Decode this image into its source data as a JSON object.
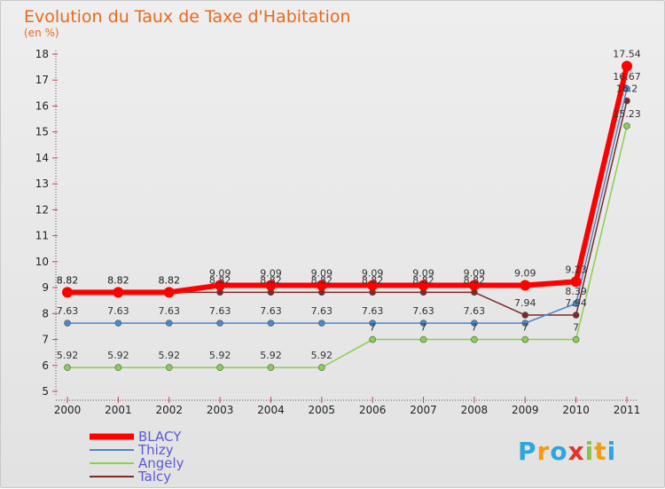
{
  "chart_data": {
    "type": "line",
    "title": "Evolution du Taux de Taxe d'Habitation",
    "subtitle": "(en %)",
    "xlabel": "",
    "ylabel": "",
    "categories": [
      "2000",
      "2001",
      "2002",
      "2003",
      "2004",
      "2005",
      "2006",
      "2007",
      "2008",
      "2009",
      "2010",
      "2011"
    ],
    "ylim": [
      5,
      18
    ],
    "yticks": [
      5,
      6,
      7,
      8,
      9,
      10,
      11,
      12,
      13,
      14,
      15,
      16,
      17,
      18
    ],
    "grid": false,
    "legend_position": "bottom-left",
    "series": [
      {
        "name": "BLACY",
        "color": "#ff0000",
        "values": [
          8.82,
          8.82,
          8.82,
          9.09,
          9.09,
          9.09,
          9.09,
          9.09,
          9.09,
          9.09,
          9.23,
          17.54
        ],
        "labels": [
          "8.82",
          "8.82",
          "8.82",
          "9.09",
          "9.09",
          "9.09",
          "9.09",
          "9.09",
          "9.09",
          "9.09",
          "9.23",
          "17.54"
        ]
      },
      {
        "name": "Thizy",
        "color": "#4a86c8",
        "values": [
          7.63,
          7.63,
          7.63,
          7.63,
          7.63,
          7.63,
          7.63,
          7.63,
          7.63,
          7.63,
          8.39,
          16.67
        ],
        "labels": [
          "7.63",
          "7.63",
          "7.63",
          "7.63",
          "7.63",
          "7.63",
          "7.63",
          "7.63",
          "7.63",
          "",
          "8.39",
          "16.67"
        ]
      },
      {
        "name": "Angely",
        "color": "#88d050",
        "values": [
          5.92,
          5.92,
          5.92,
          5.92,
          5.92,
          5.92,
          7,
          7,
          7,
          7,
          7,
          15.23
        ],
        "labels": [
          "5.92",
          "5.92",
          "5.92",
          "5.92",
          "5.92",
          "5.92",
          "7",
          "7",
          "7",
          "7",
          "7",
          "15.23"
        ]
      },
      {
        "name": "Talcy",
        "color": "#7a2a2a",
        "values": [
          8.82,
          8.82,
          8.82,
          8.82,
          8.82,
          8.82,
          8.82,
          8.82,
          8.82,
          7.94,
          7.94,
          16.2
        ],
        "labels": [
          "8.82",
          "8.82",
          "8.82",
          "8.82",
          "8.82",
          "8.82",
          "8.82",
          "8.82",
          "8.82",
          "7.94",
          "7.94",
          "16.2"
        ]
      }
    ]
  },
  "logo": {
    "text": "Proxiti",
    "colors": [
      "#2aa6e0",
      "#f39c12",
      "#2aa6e0",
      "#e0342c",
      "#8bc34a",
      "#f39c12",
      "#2aa6e0"
    ]
  }
}
